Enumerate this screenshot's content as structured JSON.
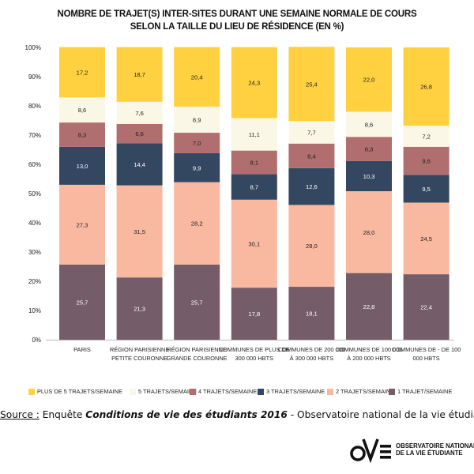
{
  "chart_data": {
    "type": "bar",
    "stacked": true,
    "title": "Nombre de trajet(s) inter-sites durant une semaine normale de cours selon la taille du lieu de résidence (en %)",
    "categories": [
      [
        "Paris"
      ],
      [
        "Région parisienne",
        "petite couronne"
      ],
      [
        "Région parisienne",
        "grande couronne"
      ],
      [
        "Communes de plus de",
        "300 000 hbts"
      ],
      [
        "Communes de 200 000",
        "à 300 000 hbts"
      ],
      [
        "Communes de 100 000",
        "à 200 000 hbts"
      ],
      [
        "Communes de - de 100",
        "000 hbts"
      ]
    ],
    "series": [
      {
        "name": "1 trajet/semaine",
        "color": "#745d68",
        "label_color": "#ffffff",
        "values": [
          25.7,
          21.3,
          25.7,
          17.8,
          18.1,
          22.8,
          22.4
        ],
        "labels": [
          "25,7",
          "21,3",
          "25,7",
          "17,8",
          "18,1",
          "22,8",
          "22,4"
        ]
      },
      {
        "name": "2 trajets/semaine",
        "color": "#f9b8a0",
        "label_color": "#222222",
        "values": [
          27.3,
          31.5,
          28.2,
          30.1,
          28.0,
          28.0,
          24.5
        ],
        "labels": [
          "27,3",
          "31,5",
          "28,2",
          "30,1",
          "28,0",
          "28,0",
          "24,5"
        ]
      },
      {
        "name": "3 trajets/semaine",
        "color": "#344760",
        "label_color": "#ffffff",
        "values": [
          13.0,
          14.4,
          9.9,
          8.7,
          12.6,
          10.3,
          9.5
        ],
        "labels": [
          "13,0",
          "14,4",
          "9,9",
          "8,7",
          "12,6",
          "10,3",
          "9,5"
        ]
      },
      {
        "name": "4 trajets/semaine",
        "color": "#b06e6e",
        "label_color": "#222222",
        "values": [
          8.3,
          6.6,
          7.0,
          8.1,
          8.4,
          8.3,
          9.6
        ],
        "labels": [
          "8,3",
          "6,6",
          "7,0",
          "8,1",
          "8,4",
          "8,3",
          "9,6"
        ]
      },
      {
        "name": "5 trajets/semaine",
        "color": "#fbf7e6",
        "label_color": "#222222",
        "values": [
          8.6,
          7.6,
          8.9,
          11.1,
          7.7,
          8.6,
          7.2
        ],
        "labels": [
          "8,6",
          "7,6",
          "8,9",
          "11,1",
          "7,7",
          "8,6",
          "7,2"
        ]
      },
      {
        "name": "Plus de 5 trajets/semaine",
        "color": "#ffd140",
        "label_color": "#222222",
        "values": [
          17.2,
          18.7,
          20.4,
          24.3,
          25.4,
          22.0,
          26.8
        ],
        "labels": [
          "17,2",
          "18,7",
          "20,4",
          "24,3",
          "25,4",
          "22,0",
          "26,8"
        ]
      }
    ],
    "ylim": [
      0,
      100
    ],
    "yticks": [
      "0%",
      "10%",
      "20%",
      "30%",
      "40%",
      "50%",
      "60%",
      "70%",
      "80%",
      "90%",
      "100%"
    ],
    "grid": false,
    "legend": {
      "position": "bottom",
      "order": [
        "Plus de 5 trajets/semaine",
        "5 trajets/semaine",
        "4 trajets/semaine",
        "3 trajets/semaine",
        "2 trajets/semaine",
        "1 trajet/semaine"
      ]
    }
  },
  "source": {
    "prefix": "Source :",
    "middle": " Enquête ",
    "emphasis": "Conditions de vie des étudiants 2016",
    "suffix": " - Observatoire national de la vie étudiante"
  },
  "logo": {
    "line1": "OBSERVATOIRE NATIONAL",
    "line2": "DE LA VIE ÉTUDIANTE"
  }
}
